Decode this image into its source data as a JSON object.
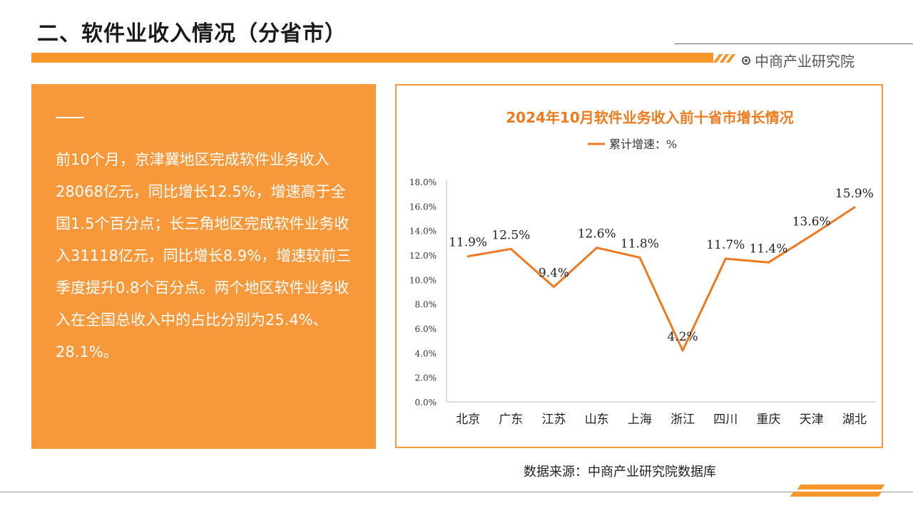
{
  "page": {
    "title": "二、软件业收入情况（分省市）",
    "brand": "中商产业研究院",
    "source": "数据来源：中商产业研究院数据库"
  },
  "panel": {
    "text": "前10个月，京津冀地区完成软件业务收入28068亿元，同比增长12.5%，增速高于全国1.5个百分点；长三角地区完成软件业务收入31118亿元，同比增长8.9%，增速较前三季度提升0.8个百分点。两个地区软件业务收入在全国总收入中的占比分别为25.4%、28.1%。"
  },
  "colors": {
    "accent": "#f7962b",
    "chart_title": "#f07b1e",
    "line": "#f0781e"
  },
  "chart_data": {
    "type": "line",
    "title": "2024年10月软件业务收入前十省市增长情况",
    "legend": "累计增速：%",
    "legend_position": "top",
    "categories": [
      "北京",
      "广东",
      "江苏",
      "山东",
      "上海",
      "浙江",
      "四川",
      "重庆",
      "天津",
      "湖北"
    ],
    "series": [
      {
        "name": "累计增速：%",
        "values": [
          11.9,
          12.5,
          9.4,
          12.6,
          11.8,
          4.2,
          11.7,
          11.4,
          13.6,
          15.9
        ]
      }
    ],
    "data_labels": [
      "11.9%",
      "12.5%",
      "9.4%",
      "12.6%",
      "11.8%",
      "4.2%",
      "11.7%",
      "11.4%",
      "13.6%",
      "15.9%"
    ],
    "y_ticks": [
      "0.0%",
      "2.0%",
      "4.0%",
      "6.0%",
      "8.0%",
      "10.0%",
      "12.0%",
      "14.0%",
      "16.0%",
      "18.0%"
    ],
    "ylim": [
      0,
      18
    ],
    "grid": false
  }
}
